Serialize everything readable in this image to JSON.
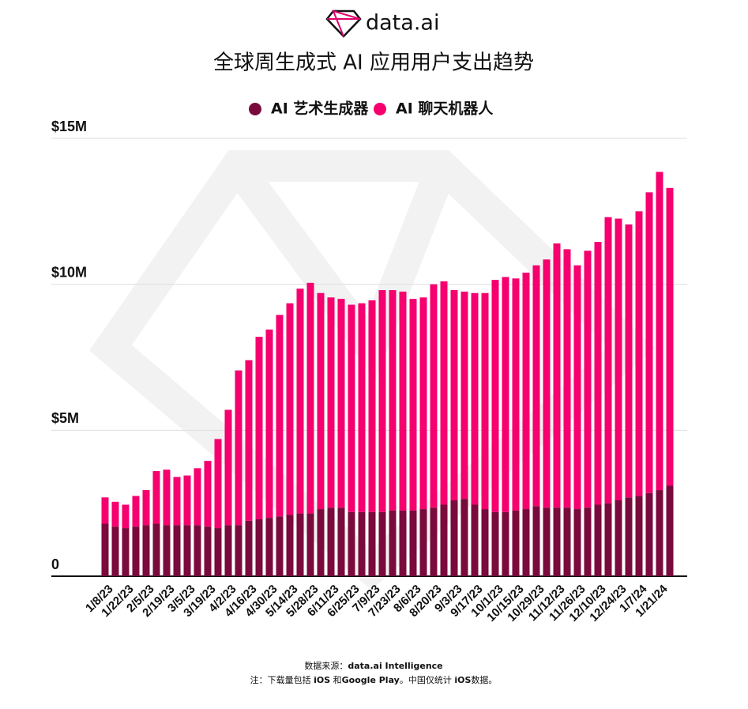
{
  "brand": "data.ai",
  "chart_data": {
    "type": "stacked-bar",
    "title": "全球周生成式 AI 应用用户支出趋势",
    "categories": [
      "1/8/23",
      null,
      "1/22/23",
      null,
      "2/5/23",
      null,
      "2/19/23",
      null,
      "3/5/23",
      null,
      "3/19/23",
      null,
      "4/2/23",
      null,
      "4/16/23",
      null,
      "4/30/23",
      null,
      "5/14/23",
      null,
      "5/28/23",
      null,
      "6/11/23",
      null,
      "6/25/23",
      null,
      "7/9/23",
      null,
      "7/23/23",
      null,
      "8/6/23",
      null,
      "8/20/23",
      null,
      "9/3/23",
      null,
      "9/17/23",
      null,
      "10/1/23",
      null,
      "10/15/23",
      null,
      "10/29/23",
      null,
      "11/12/23",
      null,
      "11/26/23",
      null,
      "12/10/23",
      null,
      "12/24/23",
      null,
      "1/7/24",
      null,
      "1/21/24",
      null
    ],
    "series": [
      {
        "name": "AI 艺术生成器",
        "color": "#7a0a3c",
        "values": [
          1.8,
          1.7,
          1.65,
          1.7,
          1.75,
          1.8,
          1.75,
          1.75,
          1.75,
          1.75,
          1.7,
          1.65,
          1.75,
          1.75,
          1.9,
          1.95,
          2.0,
          2.05,
          2.1,
          2.15,
          2.15,
          2.3,
          2.35,
          2.35,
          2.2,
          2.2,
          2.2,
          2.2,
          2.25,
          2.25,
          2.25,
          2.3,
          2.35,
          2.45,
          2.6,
          2.65,
          2.45,
          2.3,
          2.2,
          2.2,
          2.25,
          2.3,
          2.4,
          2.35,
          2.35,
          2.35,
          2.3,
          2.35,
          2.45,
          2.5,
          2.6,
          2.7,
          2.75,
          2.85,
          2.95,
          3.1
        ]
      },
      {
        "name": "AI 聊天机器人",
        "color": "#f5006e",
        "values": [
          0.9,
          0.85,
          0.8,
          1.05,
          1.2,
          1.8,
          1.9,
          1.65,
          1.7,
          1.95,
          2.25,
          3.05,
          3.95,
          5.3,
          5.5,
          6.25,
          6.45,
          6.9,
          7.25,
          7.7,
          7.9,
          7.4,
          7.2,
          7.15,
          7.1,
          7.15,
          7.25,
          7.6,
          7.55,
          7.5,
          7.25,
          7.25,
          7.65,
          7.65,
          7.2,
          7.1,
          7.25,
          7.4,
          7.95,
          8.05,
          7.95,
          8.1,
          8.25,
          8.5,
          9.05,
          8.85,
          8.35,
          8.8,
          9.0,
          9.8,
          9.65,
          9.35,
          9.75,
          10.3,
          10.9,
          10.2
        ]
      }
    ],
    "ylim": [
      0,
      15
    ],
    "yticks": [
      0,
      {
        "value": 5,
        "label": "$5M"
      },
      {
        "value": 10,
        "label": "$10M"
      },
      {
        "value": 15,
        "label": "$15M"
      }
    ],
    "grid": true
  },
  "footer": {
    "source": [
      "数据来源：",
      "data.ai Intelligence"
    ],
    "note": [
      "注：下载量包括 ",
      "iOS",
      " 和",
      "Google Play",
      "。中国仅统计 ",
      "iOS",
      "数据。"
    ]
  }
}
